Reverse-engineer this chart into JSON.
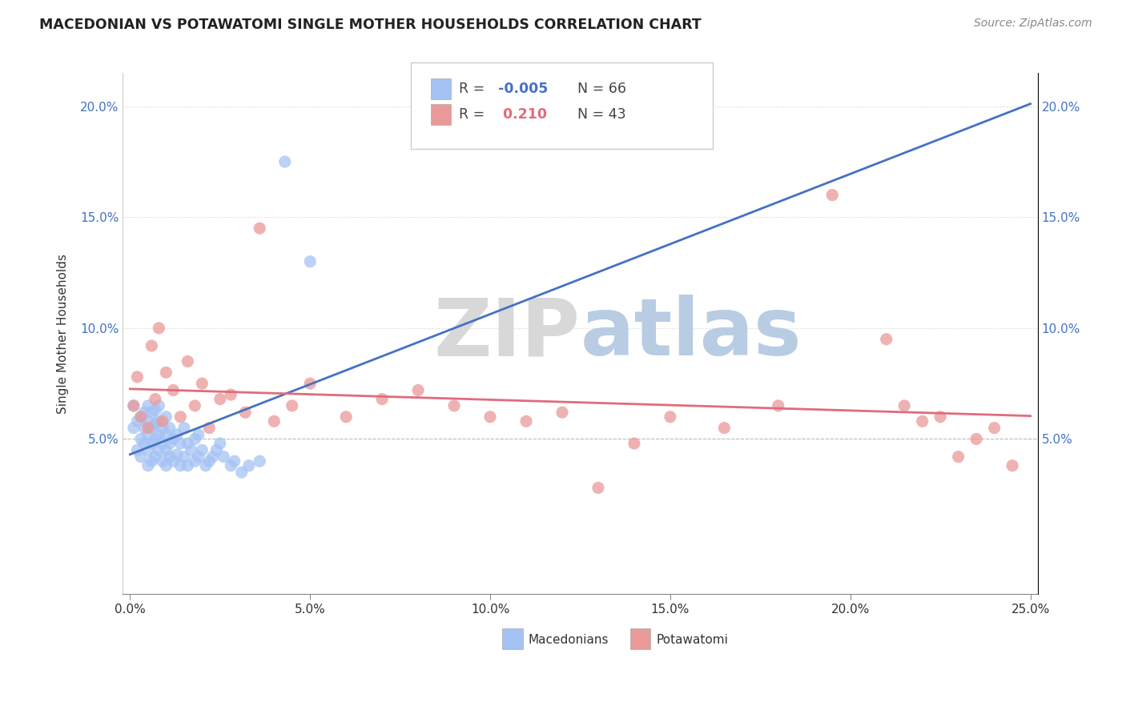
{
  "title": "MACEDONIAN VS POTAWATOMI SINGLE MOTHER HOUSEHOLDS CORRELATION CHART",
  "source": "Source: ZipAtlas.com",
  "ylabel": "Single Mother Households",
  "xlim": [
    -0.002,
    0.252
  ],
  "ylim": [
    -0.02,
    0.215
  ],
  "ytick_positions": [
    0.05,
    0.1,
    0.15,
    0.2
  ],
  "ytick_labels": [
    "5.0%",
    "10.0%",
    "15.0%",
    "20.0%"
  ],
  "xtick_positions": [
    0.0,
    0.05,
    0.1,
    0.15,
    0.2,
    0.25
  ],
  "xtick_labels": [
    "0.0%",
    "5.0%",
    "10.0%",
    "15.0%",
    "20.0%",
    "25.0%"
  ],
  "color_macedonian": "#a4c2f4",
  "color_potawatomi": "#ea9999",
  "color_macedonian_line": "#4472c4",
  "color_potawatomi_line": "#e06c7c",
  "watermark_zip": "ZIP",
  "watermark_atlas": "atlas",
  "background_color": "#ffffff",
  "mac_scatter_x": [
    0.001,
    0.001,
    0.002,
    0.002,
    0.003,
    0.003,
    0.003,
    0.004,
    0.004,
    0.004,
    0.005,
    0.005,
    0.005,
    0.005,
    0.005,
    0.006,
    0.006,
    0.006,
    0.006,
    0.007,
    0.007,
    0.007,
    0.007,
    0.008,
    0.008,
    0.008,
    0.008,
    0.009,
    0.009,
    0.009,
    0.01,
    0.01,
    0.01,
    0.01,
    0.011,
    0.011,
    0.011,
    0.012,
    0.012,
    0.013,
    0.013,
    0.014,
    0.014,
    0.015,
    0.015,
    0.016,
    0.016,
    0.017,
    0.018,
    0.018,
    0.019,
    0.019,
    0.02,
    0.021,
    0.022,
    0.023,
    0.024,
    0.025,
    0.026,
    0.028,
    0.029,
    0.031,
    0.033,
    0.036,
    0.043,
    0.05
  ],
  "mac_scatter_y": [
    0.055,
    0.065,
    0.045,
    0.058,
    0.042,
    0.05,
    0.06,
    0.048,
    0.055,
    0.062,
    0.038,
    0.045,
    0.052,
    0.058,
    0.065,
    0.04,
    0.048,
    0.055,
    0.062,
    0.042,
    0.05,
    0.057,
    0.063,
    0.045,
    0.052,
    0.058,
    0.065,
    0.04,
    0.048,
    0.055,
    0.038,
    0.045,
    0.052,
    0.06,
    0.042,
    0.048,
    0.055,
    0.04,
    0.05,
    0.043,
    0.052,
    0.038,
    0.048,
    0.042,
    0.055,
    0.038,
    0.048,
    0.045,
    0.04,
    0.05,
    0.042,
    0.052,
    0.045,
    0.038,
    0.04,
    0.042,
    0.045,
    0.048,
    0.042,
    0.038,
    0.04,
    0.035,
    0.038,
    0.04,
    0.175,
    0.13
  ],
  "pot_scatter_x": [
    0.001,
    0.002,
    0.003,
    0.005,
    0.006,
    0.007,
    0.008,
    0.009,
    0.01,
    0.012,
    0.014,
    0.016,
    0.018,
    0.02,
    0.022,
    0.025,
    0.028,
    0.032,
    0.036,
    0.04,
    0.045,
    0.05,
    0.06,
    0.07,
    0.08,
    0.09,
    0.1,
    0.11,
    0.12,
    0.13,
    0.14,
    0.15,
    0.165,
    0.18,
    0.195,
    0.21,
    0.215,
    0.22,
    0.225,
    0.23,
    0.235,
    0.24,
    0.245
  ],
  "pot_scatter_y": [
    0.065,
    0.078,
    0.06,
    0.055,
    0.092,
    0.068,
    0.1,
    0.058,
    0.08,
    0.072,
    0.06,
    0.085,
    0.065,
    0.075,
    0.055,
    0.068,
    0.07,
    0.062,
    0.145,
    0.058,
    0.065,
    0.075,
    0.06,
    0.068,
    0.072,
    0.065,
    0.06,
    0.058,
    0.062,
    0.028,
    0.048,
    0.06,
    0.055,
    0.065,
    0.16,
    0.095,
    0.065,
    0.058,
    0.06,
    0.042,
    0.05,
    0.055,
    0.038
  ]
}
